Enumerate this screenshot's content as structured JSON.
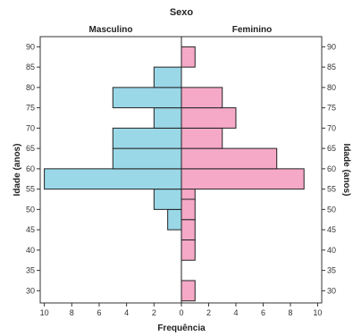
{
  "chart_data": {
    "type": "bar",
    "subtype": "population-pyramid",
    "title": "Sexo",
    "xlabel": "Frequência",
    "ylabel_left": "Idade (anos)",
    "ylabel_right": "Idade (anos)",
    "y_ticks": [
      30,
      35,
      40,
      45,
      50,
      55,
      60,
      65,
      70,
      75,
      80,
      85,
      90
    ],
    "y_range": [
      27,
      92.5
    ],
    "bin_width": 5,
    "x_ticks_left": [
      10,
      8,
      6,
      4,
      2,
      0
    ],
    "x_ticks_right": [
      0,
      2,
      4,
      6,
      8,
      10
    ],
    "x_range": [
      0,
      10.3
    ],
    "grid": false,
    "series": [
      {
        "name": "Masculino",
        "color": "#9ad8e8",
        "bins": [
          {
            "age_low": 45,
            "age_high": 50,
            "value": 1
          },
          {
            "age_low": 50,
            "age_high": 55,
            "value": 2
          },
          {
            "age_low": 55,
            "age_high": 60,
            "value": 10
          },
          {
            "age_low": 60,
            "age_high": 65,
            "value": 5
          },
          {
            "age_low": 65,
            "age_high": 70,
            "value": 5
          },
          {
            "age_low": 70,
            "age_high": 75,
            "value": 2
          },
          {
            "age_low": 75,
            "age_high": 80,
            "value": 5
          },
          {
            "age_low": 80,
            "age_high": 85,
            "value": 2
          }
        ]
      },
      {
        "name": "Feminino",
        "color": "#f6a9c7",
        "bins": [
          {
            "age_low": 27.5,
            "age_high": 32.5,
            "value": 1
          },
          {
            "age_low": 37.5,
            "age_high": 42.5,
            "value": 1
          },
          {
            "age_low": 42.5,
            "age_high": 47.5,
            "value": 1
          },
          {
            "age_low": 47.5,
            "age_high": 52.5,
            "value": 1
          },
          {
            "age_low": 52.5,
            "age_high": 57.5,
            "value": 1
          },
          {
            "age_low": 55,
            "age_high": 60,
            "value": 9
          },
          {
            "age_low": 60,
            "age_high": 65,
            "value": 7
          },
          {
            "age_low": 65,
            "age_high": 70,
            "value": 3
          },
          {
            "age_low": 70,
            "age_high": 75,
            "value": 4
          },
          {
            "age_low": 75,
            "age_high": 80,
            "value": 3
          },
          {
            "age_low": 85,
            "age_high": 90,
            "value": 1
          }
        ]
      }
    ]
  }
}
